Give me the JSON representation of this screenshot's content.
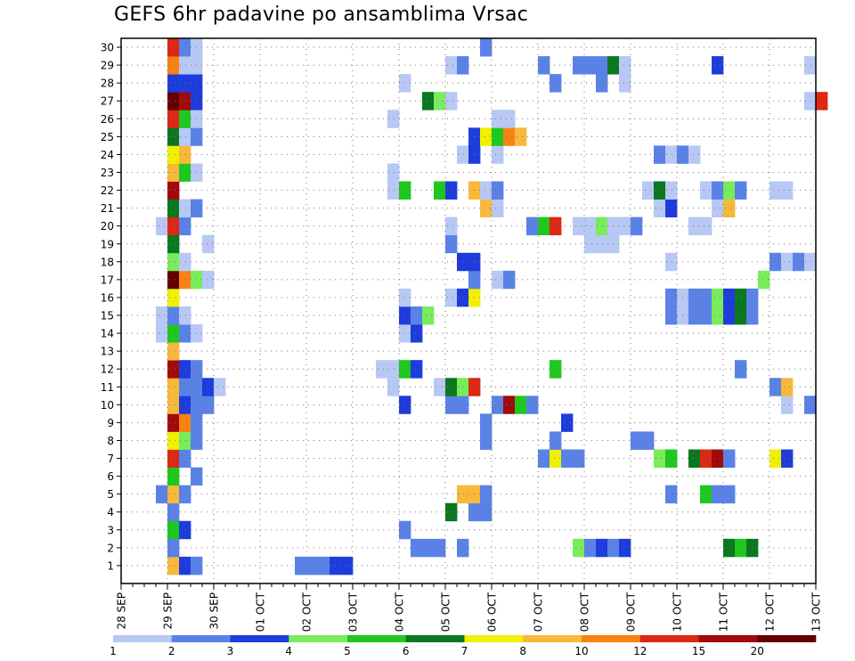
{
  "chart_data": {
    "type": "heatmap",
    "title": "GEFS 6hr padavine po ansamblima Vrsac",
    "xlabel": "",
    "ylabel": "",
    "x_ticks": [
      "28 SEP",
      "29 SEP",
      "30 SEP",
      "01 OCT",
      "02 OCT",
      "03 OCT",
      "04 OCT",
      "05 OCT",
      "06 OCT",
      "07 OCT",
      "08 OCT",
      "09 OCT",
      "10 OCT",
      "11 OCT",
      "12 OCT",
      "13 OCT"
    ],
    "y_ticks": [
      1,
      2,
      3,
      4,
      5,
      6,
      7,
      8,
      9,
      10,
      11,
      12,
      13,
      14,
      15,
      16,
      17,
      18,
      19,
      20,
      21,
      22,
      23,
      24,
      25,
      26,
      27,
      28,
      29,
      30
    ],
    "x_range_days": [
      0,
      15
    ],
    "x_step_hours": 6,
    "grid": true,
    "colorbar": {
      "labels": [
        "1",
        "2",
        "3",
        "4",
        "5",
        "6",
        "7",
        "8",
        "10",
        "12",
        "15",
        "20"
      ],
      "colors": [
        "#b8c8f4",
        "#5a82e6",
        "#1e3cdc",
        "#78ec5a",
        "#1ec81e",
        "#0a781e",
        "#f0f000",
        "#f8b83c",
        "#f88214",
        "#dc2814",
        "#a00a0a",
        "#640000"
      ]
    },
    "cells": [
      {
        "m": 0,
        "t": 4,
        "c": 7
      },
      {
        "m": 0,
        "t": 5,
        "c": 2
      },
      {
        "m": 0,
        "t": 6,
        "c": 1
      },
      {
        "m": 0,
        "t": 15,
        "c": 1
      },
      {
        "m": 0,
        "t": 16,
        "c": 1
      },
      {
        "m": 0,
        "t": 17,
        "c": 1
      },
      {
        "m": 0,
        "t": 18,
        "c": 2
      },
      {
        "m": 0,
        "t": 19,
        "c": 2
      },
      {
        "m": 1,
        "t": 4,
        "c": 1
      },
      {
        "m": 1,
        "t": 25,
        "c": 1
      },
      {
        "m": 1,
        "t": 26,
        "c": 1
      },
      {
        "m": 1,
        "t": 27,
        "c": 1
      },
      {
        "m": 1,
        "t": 29,
        "c": 1
      },
      {
        "m": 1,
        "t": 39,
        "c": 3
      },
      {
        "m": 1,
        "t": 40,
        "c": 1
      },
      {
        "m": 1,
        "t": 41,
        "c": 2
      },
      {
        "m": 1,
        "t": 42,
        "c": 1
      },
      {
        "m": 1,
        "t": 43,
        "c": 2
      },
      {
        "m": 1,
        "t": 52,
        "c": 5
      },
      {
        "m": 1,
        "t": 53,
        "c": 4
      },
      {
        "m": 1,
        "t": 54,
        "c": 5
      },
      {
        "m": 2,
        "t": 4,
        "c": 4
      },
      {
        "m": 2,
        "t": 5,
        "c": 2
      },
      {
        "m": 2,
        "t": 24,
        "c": 1
      },
      {
        "m": 3,
        "t": 4,
        "c": 1
      },
      {
        "m": 3,
        "t": 28,
        "c": 5
      },
      {
        "m": 3,
        "t": 30,
        "c": 1
      },
      {
        "m": 3,
        "t": 31,
        "c": 1
      },
      {
        "m": 4,
        "t": 3,
        "c": 1
      },
      {
        "m": 4,
        "t": 4,
        "c": 7
      },
      {
        "m": 4,
        "t": 5,
        "c": 1
      },
      {
        "m": 4,
        "t": 29,
        "c": 7
      },
      {
        "m": 4,
        "t": 30,
        "c": 7
      },
      {
        "m": 4,
        "t": 31,
        "c": 1
      },
      {
        "m": 4,
        "t": 47,
        "c": 1
      },
      {
        "m": 4,
        "t": 50,
        "c": 4
      },
      {
        "m": 4,
        "t": 51,
        "c": 1
      },
      {
        "m": 4,
        "t": 52,
        "c": 1
      },
      {
        "m": 5,
        "t": 4,
        "c": 4
      },
      {
        "m": 5,
        "t": 6,
        "c": 1
      },
      {
        "m": 6,
        "t": 4,
        "c": 9
      },
      {
        "m": 6,
        "t": 5,
        "c": 1
      },
      {
        "m": 6,
        "t": 36,
        "c": 1
      },
      {
        "m": 6,
        "t": 37,
        "c": 6
      },
      {
        "m": 6,
        "t": 38,
        "c": 1
      },
      {
        "m": 6,
        "t": 39,
        "c": 1
      },
      {
        "m": 6,
        "t": 46,
        "c": 3
      },
      {
        "m": 6,
        "t": 47,
        "c": 4
      },
      {
        "m": 6,
        "t": 49,
        "c": 5
      },
      {
        "m": 6,
        "t": 50,
        "c": 9
      },
      {
        "m": 6,
        "t": 51,
        "c": 10
      },
      {
        "m": 6,
        "t": 52,
        "c": 1
      },
      {
        "m": 6,
        "t": 56,
        "c": 6
      },
      {
        "m": 6,
        "t": 57,
        "c": 2
      },
      {
        "m": 7,
        "t": 4,
        "c": 6
      },
      {
        "m": 7,
        "t": 5,
        "c": 3
      },
      {
        "m": 7,
        "t": 6,
        "c": 1
      },
      {
        "m": 7,
        "t": 31,
        "c": 1
      },
      {
        "m": 7,
        "t": 37,
        "c": 1
      },
      {
        "m": 7,
        "t": 44,
        "c": 1
      },
      {
        "m": 7,
        "t": 45,
        "c": 1
      },
      {
        "m": 8,
        "t": 4,
        "c": 10
      },
      {
        "m": 8,
        "t": 5,
        "c": 8
      },
      {
        "m": 8,
        "t": 6,
        "c": 1
      },
      {
        "m": 8,
        "t": 31,
        "c": 1
      },
      {
        "m": 8,
        "t": 38,
        "c": 2
      },
      {
        "m": 9,
        "t": 4,
        "c": 7
      },
      {
        "m": 9,
        "t": 5,
        "c": 2
      },
      {
        "m": 9,
        "t": 6,
        "c": 1
      },
      {
        "m": 9,
        "t": 7,
        "c": 1
      },
      {
        "m": 9,
        "t": 24,
        "c": 2
      },
      {
        "m": 9,
        "t": 28,
        "c": 1
      },
      {
        "m": 9,
        "t": 29,
        "c": 1
      },
      {
        "m": 9,
        "t": 32,
        "c": 1
      },
      {
        "m": 9,
        "t": 33,
        "c": 10
      },
      {
        "m": 9,
        "t": 34,
        "c": 4
      },
      {
        "m": 9,
        "t": 35,
        "c": 1
      },
      {
        "m": 9,
        "t": 57,
        "c": 0
      },
      {
        "m": 9,
        "t": 59,
        "c": 1
      },
      {
        "m": 10,
        "t": 4,
        "c": 7
      },
      {
        "m": 10,
        "t": 5,
        "c": 1
      },
      {
        "m": 10,
        "t": 6,
        "c": 1
      },
      {
        "m": 10,
        "t": 7,
        "c": 2
      },
      {
        "m": 10,
        "t": 8,
        "c": 0
      },
      {
        "m": 10,
        "t": 23,
        "c": 0
      },
      {
        "m": 10,
        "t": 27,
        "c": 0
      },
      {
        "m": 10,
        "t": 28,
        "c": 5
      },
      {
        "m": 10,
        "t": 29,
        "c": 3
      },
      {
        "m": 10,
        "t": 30,
        "c": 9
      },
      {
        "m": 10,
        "t": 56,
        "c": 1
      },
      {
        "m": 10,
        "t": 57,
        "c": 7
      },
      {
        "m": 11,
        "t": 4,
        "c": 10
      },
      {
        "m": 11,
        "t": 5,
        "c": 2
      },
      {
        "m": 11,
        "t": 6,
        "c": 1
      },
      {
        "m": 11,
        "t": 22,
        "c": 0
      },
      {
        "m": 11,
        "t": 23,
        "c": 0
      },
      {
        "m": 11,
        "t": 24,
        "c": 4
      },
      {
        "m": 11,
        "t": 25,
        "c": 2
      },
      {
        "m": 11,
        "t": 37,
        "c": 4
      },
      {
        "m": 11,
        "t": 53,
        "c": 1
      },
      {
        "m": 12,
        "t": 4,
        "c": 7
      },
      {
        "m": 13,
        "t": 3,
        "c": 0
      },
      {
        "m": 13,
        "t": 4,
        "c": 4
      },
      {
        "m": 13,
        "t": 5,
        "c": 1
      },
      {
        "m": 13,
        "t": 6,
        "c": 0
      },
      {
        "m": 13,
        "t": 24,
        "c": 0
      },
      {
        "m": 13,
        "t": 25,
        "c": 2
      },
      {
        "m": 14,
        "t": 3,
        "c": 0
      },
      {
        "m": 14,
        "t": 4,
        "c": 1
      },
      {
        "m": 14,
        "t": 5,
        "c": 0
      },
      {
        "m": 14,
        "t": 24,
        "c": 2
      },
      {
        "m": 14,
        "t": 25,
        "c": 1
      },
      {
        "m": 14,
        "t": 26,
        "c": 3
      },
      {
        "m": 14,
        "t": 47,
        "c": 1
      },
      {
        "m": 14,
        "t": 48,
        "c": 0
      },
      {
        "m": 14,
        "t": 49,
        "c": 1
      },
      {
        "m": 14,
        "t": 50,
        "c": 1
      },
      {
        "m": 14,
        "t": 51,
        "c": 3
      },
      {
        "m": 14,
        "t": 52,
        "c": 2
      },
      {
        "m": 14,
        "t": 53,
        "c": 5
      },
      {
        "m": 14,
        "t": 54,
        "c": 1
      },
      {
        "m": 15,
        "t": 4,
        "c": 6
      },
      {
        "m": 15,
        "t": 24,
        "c": 0
      },
      {
        "m": 15,
        "t": 28,
        "c": 0
      },
      {
        "m": 15,
        "t": 29,
        "c": 2
      },
      {
        "m": 15,
        "t": 30,
        "c": 6
      },
      {
        "m": 15,
        "t": 47,
        "c": 1
      },
      {
        "m": 15,
        "t": 48,
        "c": 0
      },
      {
        "m": 15,
        "t": 49,
        "c": 1
      },
      {
        "m": 15,
        "t": 50,
        "c": 1
      },
      {
        "m": 15,
        "t": 51,
        "c": 3
      },
      {
        "m": 15,
        "t": 52,
        "c": 2
      },
      {
        "m": 15,
        "t": 53,
        "c": 5
      },
      {
        "m": 15,
        "t": 54,
        "c": 1
      },
      {
        "m": 16,
        "t": 4,
        "c": 11
      },
      {
        "m": 16,
        "t": 5,
        "c": 8
      },
      {
        "m": 16,
        "t": 6,
        "c": 3
      },
      {
        "m": 16,
        "t": 7,
        "c": 0
      },
      {
        "m": 16,
        "t": 30,
        "c": 1
      },
      {
        "m": 16,
        "t": 32,
        "c": 0
      },
      {
        "m": 16,
        "t": 33,
        "c": 1
      },
      {
        "m": 16,
        "t": 55,
        "c": 3
      },
      {
        "m": 17,
        "t": 4,
        "c": 3
      },
      {
        "m": 17,
        "t": 5,
        "c": 0
      },
      {
        "m": 17,
        "t": 29,
        "c": 2
      },
      {
        "m": 17,
        "t": 30,
        "c": 2
      },
      {
        "m": 17,
        "t": 47,
        "c": 0
      },
      {
        "m": 17,
        "t": 56,
        "c": 1
      },
      {
        "m": 17,
        "t": 57,
        "c": 0
      },
      {
        "m": 17,
        "t": 58,
        "c": 1
      },
      {
        "m": 17,
        "t": 59,
        "c": 0
      },
      {
        "m": 18,
        "t": 4,
        "c": 5
      },
      {
        "m": 18,
        "t": 7,
        "c": 0
      },
      {
        "m": 18,
        "t": 28,
        "c": 1
      },
      {
        "m": 18,
        "t": 40,
        "c": 0
      },
      {
        "m": 18,
        "t": 41,
        "c": 0
      },
      {
        "m": 18,
        "t": 42,
        "c": 0
      },
      {
        "m": 19,
        "t": 3,
        "c": 0
      },
      {
        "m": 19,
        "t": 4,
        "c": 9
      },
      {
        "m": 19,
        "t": 5,
        "c": 1
      },
      {
        "m": 19,
        "t": 28,
        "c": 0
      },
      {
        "m": 19,
        "t": 35,
        "c": 1
      },
      {
        "m": 19,
        "t": 36,
        "c": 4
      },
      {
        "m": 19,
        "t": 37,
        "c": 9
      },
      {
        "m": 19,
        "t": 39,
        "c": 0
      },
      {
        "m": 19,
        "t": 40,
        "c": 0
      },
      {
        "m": 19,
        "t": 41,
        "c": 3
      },
      {
        "m": 19,
        "t": 42,
        "c": 0
      },
      {
        "m": 19,
        "t": 43,
        "c": 0
      },
      {
        "m": 19,
        "t": 44,
        "c": 1
      },
      {
        "m": 19,
        "t": 49,
        "c": 0
      },
      {
        "m": 19,
        "t": 50,
        "c": 0
      },
      {
        "m": 20,
        "t": 4,
        "c": 5
      },
      {
        "m": 20,
        "t": 5,
        "c": 0
      },
      {
        "m": 20,
        "t": 6,
        "c": 1
      },
      {
        "m": 20,
        "t": 31,
        "c": 7
      },
      {
        "m": 20,
        "t": 32,
        "c": 0
      },
      {
        "m": 20,
        "t": 46,
        "c": 0
      },
      {
        "m": 20,
        "t": 47,
        "c": 2
      },
      {
        "m": 20,
        "t": 51,
        "c": 0
      },
      {
        "m": 20,
        "t": 52,
        "c": 7
      },
      {
        "m": 21,
        "t": 4,
        "c": 10
      },
      {
        "m": 21,
        "t": 23,
        "c": 0
      },
      {
        "m": 21,
        "t": 24,
        "c": 4
      },
      {
        "m": 21,
        "t": 27,
        "c": 4
      },
      {
        "m": 21,
        "t": 28,
        "c": 2
      },
      {
        "m": 21,
        "t": 30,
        "c": 7
      },
      {
        "m": 21,
        "t": 31,
        "c": 0
      },
      {
        "m": 21,
        "t": 32,
        "c": 1
      },
      {
        "m": 21,
        "t": 45,
        "c": 0
      },
      {
        "m": 21,
        "t": 46,
        "c": 5
      },
      {
        "m": 21,
        "t": 47,
        "c": 0
      },
      {
        "m": 21,
        "t": 50,
        "c": 0
      },
      {
        "m": 21,
        "t": 51,
        "c": 1
      },
      {
        "m": 21,
        "t": 52,
        "c": 3
      },
      {
        "m": 21,
        "t": 53,
        "c": 1
      },
      {
        "m": 21,
        "t": 56,
        "c": 0
      },
      {
        "m": 21,
        "t": 57,
        "c": 0
      },
      {
        "m": 22,
        "t": 4,
        "c": 7
      },
      {
        "m": 22,
        "t": 5,
        "c": 4
      },
      {
        "m": 22,
        "t": 6,
        "c": 0
      },
      {
        "m": 22,
        "t": 23,
        "c": 0
      },
      {
        "m": 23,
        "t": 4,
        "c": 6
      },
      {
        "m": 23,
        "t": 5,
        "c": 7
      },
      {
        "m": 23,
        "t": 29,
        "c": 0
      },
      {
        "m": 23,
        "t": 30,
        "c": 2
      },
      {
        "m": 23,
        "t": 32,
        "c": 0
      },
      {
        "m": 23,
        "t": 46,
        "c": 1
      },
      {
        "m": 23,
        "t": 47,
        "c": 0
      },
      {
        "m": 23,
        "t": 48,
        "c": 1
      },
      {
        "m": 23,
        "t": 49,
        "c": 0
      },
      {
        "m": 24,
        "t": 4,
        "c": 5
      },
      {
        "m": 24,
        "t": 5,
        "c": 0
      },
      {
        "m": 24,
        "t": 6,
        "c": 1
      },
      {
        "m": 24,
        "t": 30,
        "c": 2
      },
      {
        "m": 24,
        "t": 31,
        "c": 6
      },
      {
        "m": 24,
        "t": 32,
        "c": 4
      },
      {
        "m": 24,
        "t": 33,
        "c": 8
      },
      {
        "m": 24,
        "t": 34,
        "c": 7
      },
      {
        "m": 25,
        "t": 4,
        "c": 9
      },
      {
        "m": 25,
        "t": 5,
        "c": 4
      },
      {
        "m": 25,
        "t": 6,
        "c": 0
      },
      {
        "m": 25,
        "t": 23,
        "c": 0
      },
      {
        "m": 25,
        "t": 32,
        "c": 0
      },
      {
        "m": 25,
        "t": 33,
        "c": 0
      },
      {
        "m": 26,
        "t": 4,
        "c": 11
      },
      {
        "m": 26,
        "t": 5,
        "c": 10
      },
      {
        "m": 26,
        "t": 6,
        "c": 2
      },
      {
        "m": 26,
        "t": 26,
        "c": 5
      },
      {
        "m": 26,
        "t": 27,
        "c": 3
      },
      {
        "m": 26,
        "t": 28,
        "c": 0
      },
      {
        "m": 26,
        "t": 59,
        "c": 0
      },
      {
        "m": 26,
        "t": 60,
        "c": 9
      },
      {
        "m": 27,
        "t": 4,
        "c": 2
      },
      {
        "m": 27,
        "t": 5,
        "c": 2
      },
      {
        "m": 27,
        "t": 6,
        "c": 2
      },
      {
        "m": 27,
        "t": 24,
        "c": 0
      },
      {
        "m": 27,
        "t": 37,
        "c": 1
      },
      {
        "m": 27,
        "t": 41,
        "c": 1
      },
      {
        "m": 27,
        "t": 43,
        "c": 0
      },
      {
        "m": 28,
        "t": 4,
        "c": 8
      },
      {
        "m": 28,
        "t": 5,
        "c": 0
      },
      {
        "m": 28,
        "t": 6,
        "c": 0
      },
      {
        "m": 28,
        "t": 28,
        "c": 0
      },
      {
        "m": 28,
        "t": 29,
        "c": 1
      },
      {
        "m": 28,
        "t": 36,
        "c": 1
      },
      {
        "m": 28,
        "t": 39,
        "c": 1
      },
      {
        "m": 28,
        "t": 40,
        "c": 1
      },
      {
        "m": 28,
        "t": 41,
        "c": 1
      },
      {
        "m": 28,
        "t": 42,
        "c": 5
      },
      {
        "m": 28,
        "t": 43,
        "c": 0
      },
      {
        "m": 28,
        "t": 51,
        "c": 2
      },
      {
        "m": 28,
        "t": 59,
        "c": 0
      },
      {
        "m": 29,
        "t": 4,
        "c": 9
      },
      {
        "m": 29,
        "t": 5,
        "c": 1
      },
      {
        "m": 29,
        "t": 6,
        "c": 0
      },
      {
        "m": 29,
        "t": 31,
        "c": 1
      }
    ]
  }
}
